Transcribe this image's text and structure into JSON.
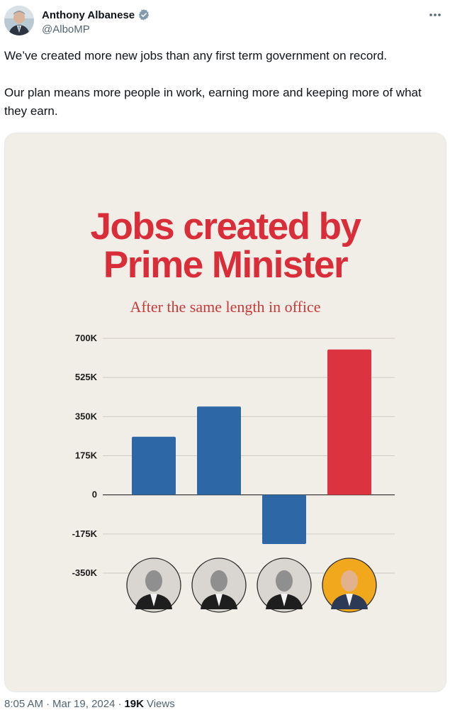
{
  "author": {
    "display_name": "Anthony Albanese",
    "handle": "@AlboMP",
    "verified_icon": "verified-badge-icon"
  },
  "tweet": {
    "paragraphs": [
      "We’ve created more new jobs than any first term government on record.",
      "Our plan means more people in work, earning more and keeping more of what they earn."
    ]
  },
  "meta": {
    "time": "8:05 AM",
    "separator": "·",
    "date": "Mar 19, 2024",
    "views_count": "19K",
    "views_label": "Views"
  },
  "colors": {
    "brand_red": "#d92d3a",
    "bar_blue": "#2e67a6",
    "bar_red": "#dc3340",
    "portrait_highlight": "#f2a81d"
  },
  "chart_data": {
    "type": "bar",
    "title_lines": [
      "Jobs created by",
      "Prime Minister"
    ],
    "subtitle": "After the same length in office",
    "y_ticks": [
      "700K",
      "525K",
      "350K",
      "175K",
      "0",
      "-175K",
      "-350K"
    ],
    "y_tick_values": [
      700000,
      525000,
      350000,
      175000,
      0,
      -175000,
      -350000
    ],
    "ylim": [
      -350000,
      700000
    ],
    "grid": true,
    "categories": [
      "portrait-1",
      "portrait-2",
      "portrait-3",
      "portrait-4"
    ],
    "values": [
      260000,
      395000,
      -220000,
      650000
    ],
    "bar_colors": [
      "#2e67a6",
      "#2e67a6",
      "#2e67a6",
      "#dc3340"
    ]
  }
}
